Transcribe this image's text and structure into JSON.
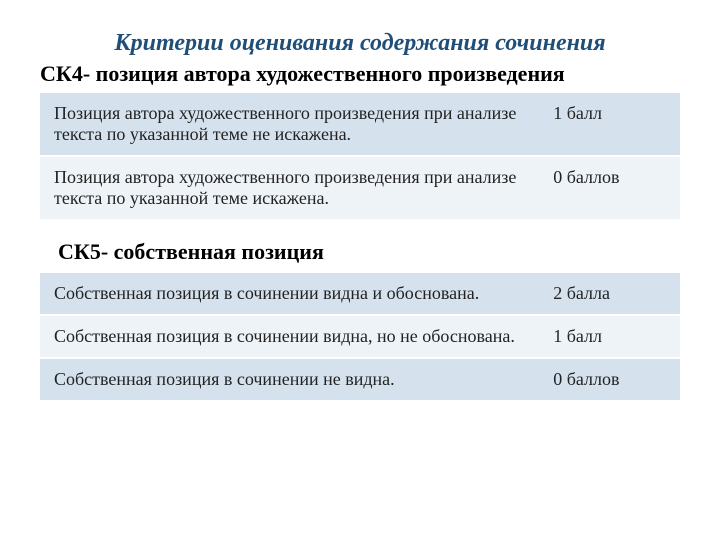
{
  "title": "Критерии оценивания содержания сочинения",
  "sections": [
    {
      "heading": "СК4- позиция автора художественного произведения",
      "heading_indent": false,
      "rows": [
        {
          "desc": "Позиция автора художественного произведения при анализе текста по указанной теме не искажена.",
          "score": "1 балл",
          "row_class": "row-blue"
        },
        {
          "desc": "Позиция автора художественного произведения при анализе текста по указанной теме искажена.",
          "score": "0 баллов",
          "row_class": "row-light"
        }
      ]
    },
    {
      "heading": "СК5- собственная позиция",
      "heading_indent": true,
      "rows": [
        {
          "desc": "Собственная позиция в сочинении видна и обоснована.",
          "score": "2 балла",
          "row_class": "row-blue"
        },
        {
          "desc": "Собственная позиция в сочинении видна, но не обоснована.",
          "score": "1 балл",
          "row_class": "row-light"
        },
        {
          "desc": "Собственная позиция в сочинении не видна.",
          "score": "0 баллов",
          "row_class": "row-blue"
        }
      ]
    }
  ],
  "colors": {
    "title_color": "#1f4e79",
    "row_blue": "#d5e2ee",
    "row_light": "#eef3f8",
    "text_color": "#222222",
    "background": "#ffffff"
  },
  "typography": {
    "title_fontsize": 24,
    "section_fontsize": 22,
    "cell_fontsize": 18,
    "font_family": "Times New Roman"
  }
}
